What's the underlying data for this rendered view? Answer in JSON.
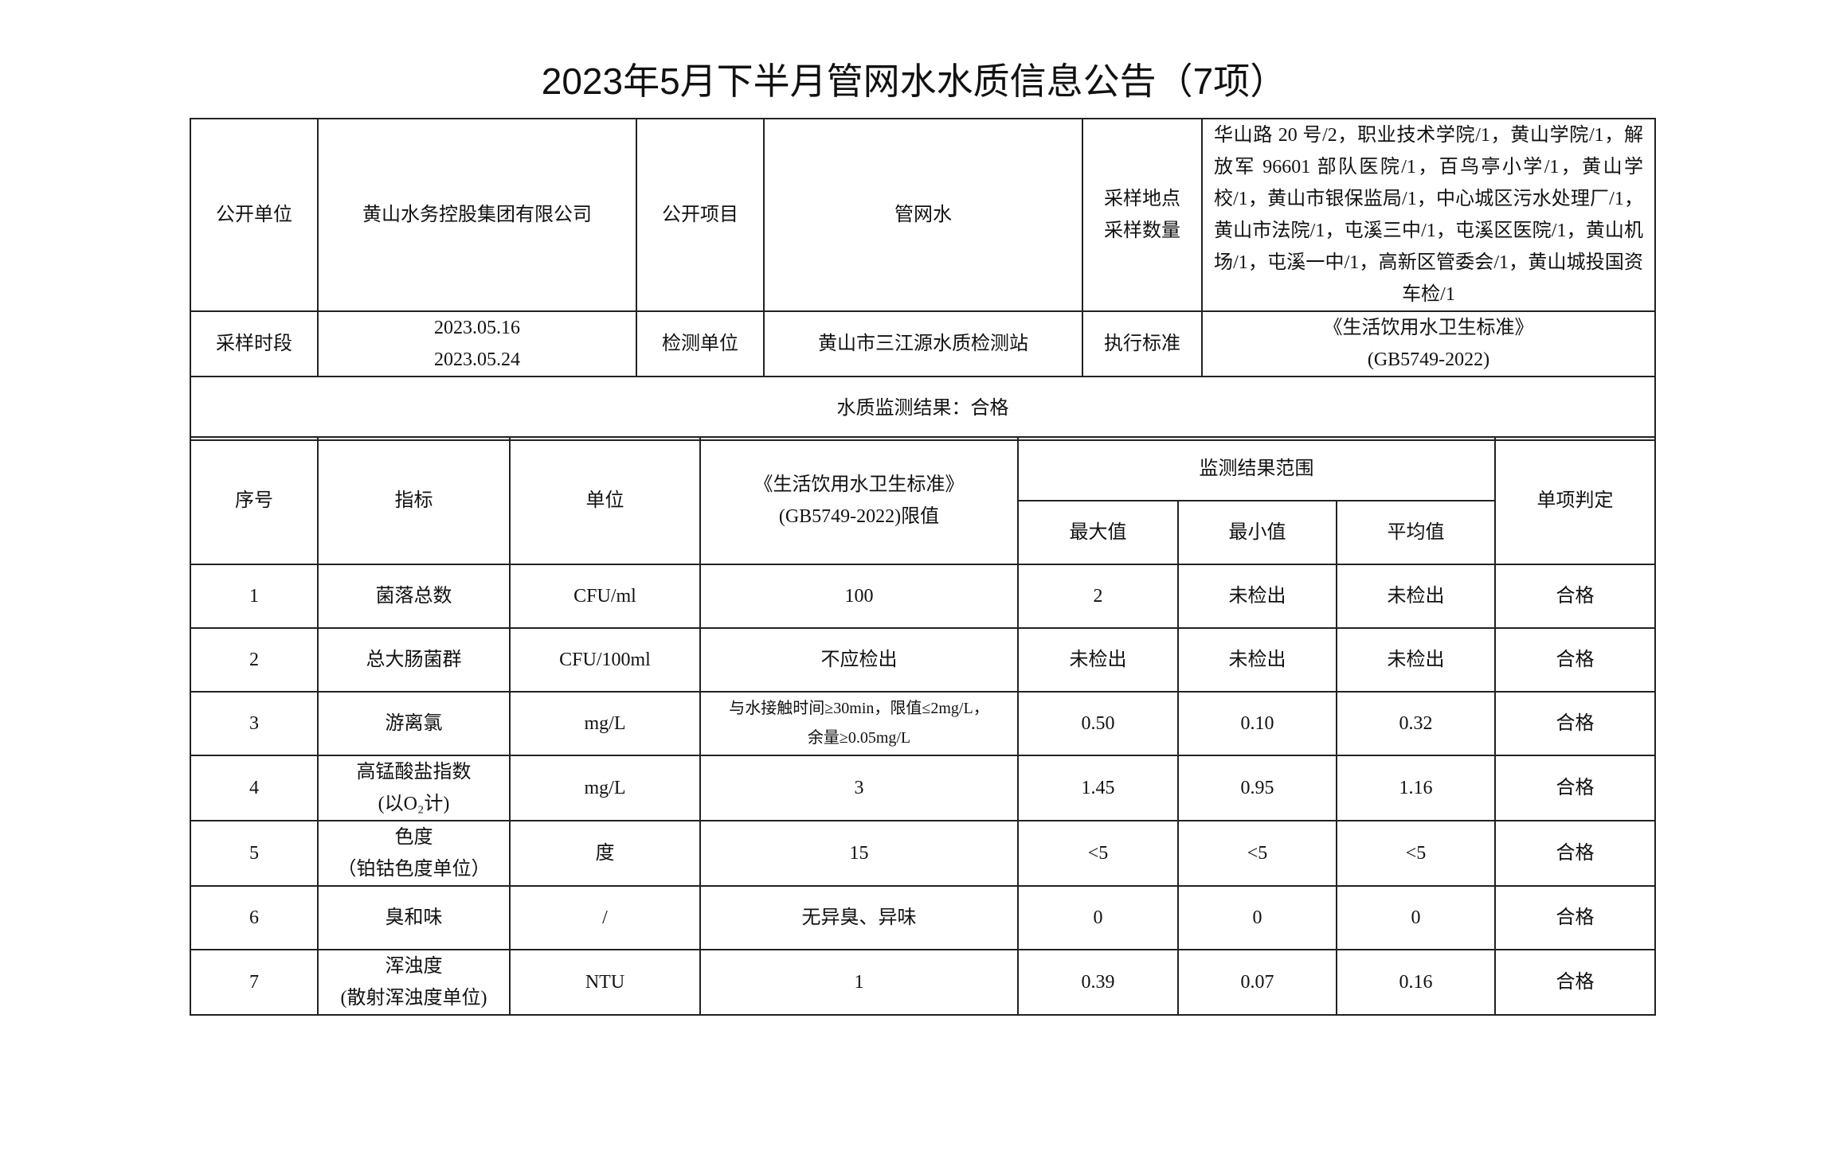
{
  "title": "2023年5月下半月管网水水质信息公告（7项）",
  "info": {
    "publisher_label": "公开单位",
    "publisher_value": "黄山水务控股集团有限公司",
    "item_label": "公开项目",
    "item_value": "管网水",
    "sites_label_1": "采样地点",
    "sites_label_2": "采样数量",
    "sites_value": "华山路 20 号/2，职业技术学院/1，黄山学院/1，解放军 96601 部队医院/1，百鸟亭小学/1，黄山学校/1，黄山市银保监局/1，中心城区污水处理厂/1，黄山市法院/1，屯溪三中/1，屯溪区医院/1，黄山机场/1，屯溪一中/1，高新区管委会/1，黄山城投国资车检/1",
    "period_label": "采样时段",
    "period_start": "2023.05.16",
    "period_end": "2023.05.24",
    "lab_label": "检测单位",
    "lab_value": "黄山市三江源水质检测站",
    "standard_label": "执行标准",
    "standard_name": "《生活饮用水卫生标准》",
    "standard_code": "(GB5749-2022)",
    "result_summary": "水质监测结果：合格"
  },
  "table": {
    "headers": {
      "no": "序号",
      "indicator": "指标",
      "unit": "单位",
      "limit_1": "《生活饮用水卫生标准》",
      "limit_2": "(GB5749-2022)限值",
      "range": "监测结果范围",
      "max": "最大值",
      "min": "最小值",
      "avg": "平均值",
      "verdict": "单项判定"
    },
    "rows": [
      {
        "no": "1",
        "name": "菌落总数",
        "name2": "",
        "unit": "CFU/ml",
        "limit": "100",
        "limit2": "",
        "max": "2",
        "min": "未检出",
        "avg": "未检出",
        "verdict": "合格"
      },
      {
        "no": "2",
        "name": "总大肠菌群",
        "name2": "",
        "unit": "CFU/100ml",
        "limit": "不应检出",
        "limit2": "",
        "max": "未检出",
        "min": "未检出",
        "avg": "未检出",
        "verdict": "合格"
      },
      {
        "no": "3",
        "name": "游离氯",
        "name2": "",
        "unit": "mg/L",
        "limit": "与水接触时间≥30min，限值≤2mg/L，",
        "limit2": "余量≥0.05mg/L",
        "max": "0.50",
        "min": "0.10",
        "avg": "0.32",
        "verdict": "合格"
      },
      {
        "no": "4",
        "name": "高锰酸盐指数",
        "name2": "(以O₂计)",
        "unit": "mg/L",
        "limit": "3",
        "limit2": "",
        "max": "1.45",
        "min": "0.95",
        "avg": "1.16",
        "verdict": "合格"
      },
      {
        "no": "5",
        "name": "色度",
        "name2": "（铂钴色度单位）",
        "unit": "度",
        "limit": "15",
        "limit2": "",
        "max": "<5",
        "min": "<5",
        "avg": "<5",
        "verdict": "合格"
      },
      {
        "no": "6",
        "name": "臭和味",
        "name2": "",
        "unit": "/",
        "limit": "无异臭、异味",
        "limit2": "",
        "max": "0",
        "min": "0",
        "avg": "0",
        "verdict": "合格"
      },
      {
        "no": "7",
        "name": "浑浊度",
        "name2": "(散射浑浊度单位)",
        "unit": "NTU",
        "limit": "1",
        "limit2": "",
        "max": "0.39",
        "min": "0.07",
        "avg": "0.16",
        "verdict": "合格"
      }
    ]
  }
}
